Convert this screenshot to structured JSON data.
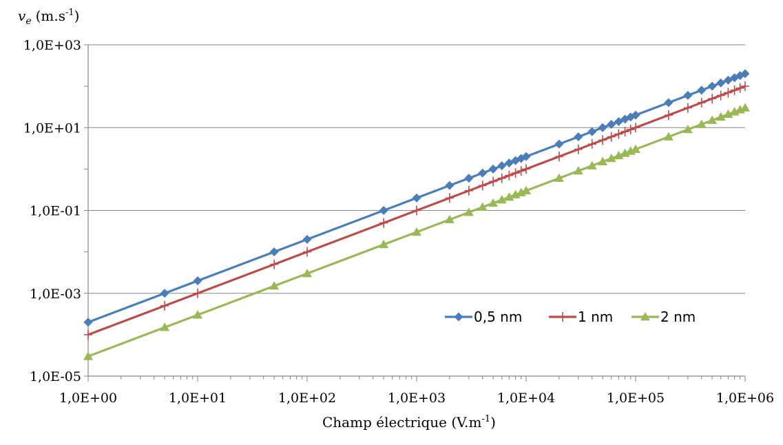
{
  "chart_data": {
    "type": "line",
    "title": "",
    "x_scale": "log",
    "y_scale": "log",
    "xlim": [
      1,
      1000000
    ],
    "ylim": [
      1e-05,
      1000
    ],
    "grid": {
      "horizontal": true,
      "vertical": false
    },
    "legend_position": "bottom-right",
    "ylabel": {
      "symbol": "v",
      "subscript": "e",
      "unit": "(m.s",
      "exp": "-1",
      "close": ")"
    },
    "xlabel": {
      "text": "Champ électrique (V.m",
      "exp": "-1",
      "close": ")"
    },
    "x_ticks": [
      {
        "value": 1,
        "label": "1,0E+00"
      },
      {
        "value": 10,
        "label": "1,0E+01"
      },
      {
        "value": 100,
        "label": "1,0E+02"
      },
      {
        "value": 1000,
        "label": "1,0E+03"
      },
      {
        "value": 10000,
        "label": "1,0E+04"
      },
      {
        "value": 100000,
        "label": "1,0E+05"
      },
      {
        "value": 1000000,
        "label": "1,0E+06"
      }
    ],
    "y_ticks": [
      {
        "value": 1e-05,
        "label": "1,0E-05"
      },
      {
        "value": 0.001,
        "label": "1,0E-03"
      },
      {
        "value": 0.1,
        "label": "1,0E-01"
      },
      {
        "value": 10,
        "label": "1,0E+01"
      },
      {
        "value": 1000,
        "label": "1,0E+03"
      }
    ],
    "x": [
      1,
      5,
      10,
      50,
      100,
      500,
      1000,
      2000,
      3000,
      4000,
      5000,
      6000,
      7000,
      8000,
      9000,
      10000,
      20000,
      30000,
      40000,
      50000,
      60000,
      70000,
      80000,
      90000,
      100000,
      200000,
      300000,
      400000,
      500000,
      600000,
      700000,
      800000,
      900000,
      1000000
    ],
    "series": [
      {
        "name": "0,5 nm",
        "color": "#4a7ebb",
        "marker": "diamond",
        "slope_coef": 0.0002
      },
      {
        "name": "1 nm",
        "color": "#be4b48",
        "marker": "plus",
        "slope_coef": 0.0001
      },
      {
        "name": "2 nm",
        "color": "#98b954",
        "marker": "triangle",
        "slope_coef": 3e-05
      }
    ]
  }
}
